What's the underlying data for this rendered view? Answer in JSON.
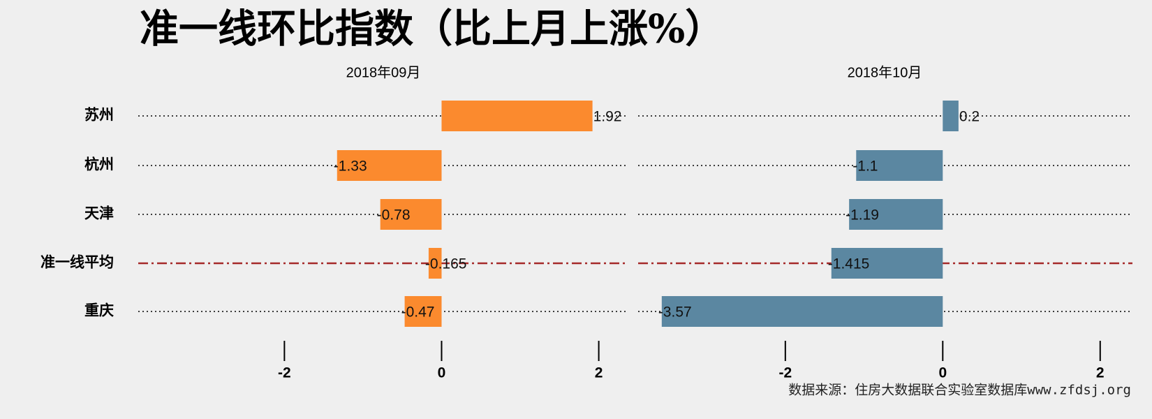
{
  "title": "准一线环比指数（比上月上涨%）",
  "caption": "数据来源：住房大数据联合实验室数据库www.zfdsj.org",
  "chart_data": [
    {
      "type": "bar",
      "subtitle": "2018年09月",
      "categories": [
        "苏州",
        "杭州",
        "天津",
        "准一线平均",
        "重庆"
      ],
      "values": [
        1.92,
        -1.33,
        -0.78,
        -0.165,
        -0.47
      ],
      "color": "#fb8a2e",
      "xlim": [
        -3.86,
        2.35
      ],
      "xticks": [
        -2,
        0,
        2
      ],
      "highlight": 3,
      "highlight_color": "#a52a2a"
    },
    {
      "type": "bar",
      "subtitle": "2018年10月",
      "values": [
        0.2,
        -1.1,
        -1.19,
        -1.415,
        -3.57
      ],
      "color": "#5b87a1",
      "xlim": [
        -3.87,
        2.41
      ],
      "xticks": [
        -2,
        0,
        2
      ],
      "highlight": 3,
      "highlight_color": "#a52a2a"
    }
  ]
}
